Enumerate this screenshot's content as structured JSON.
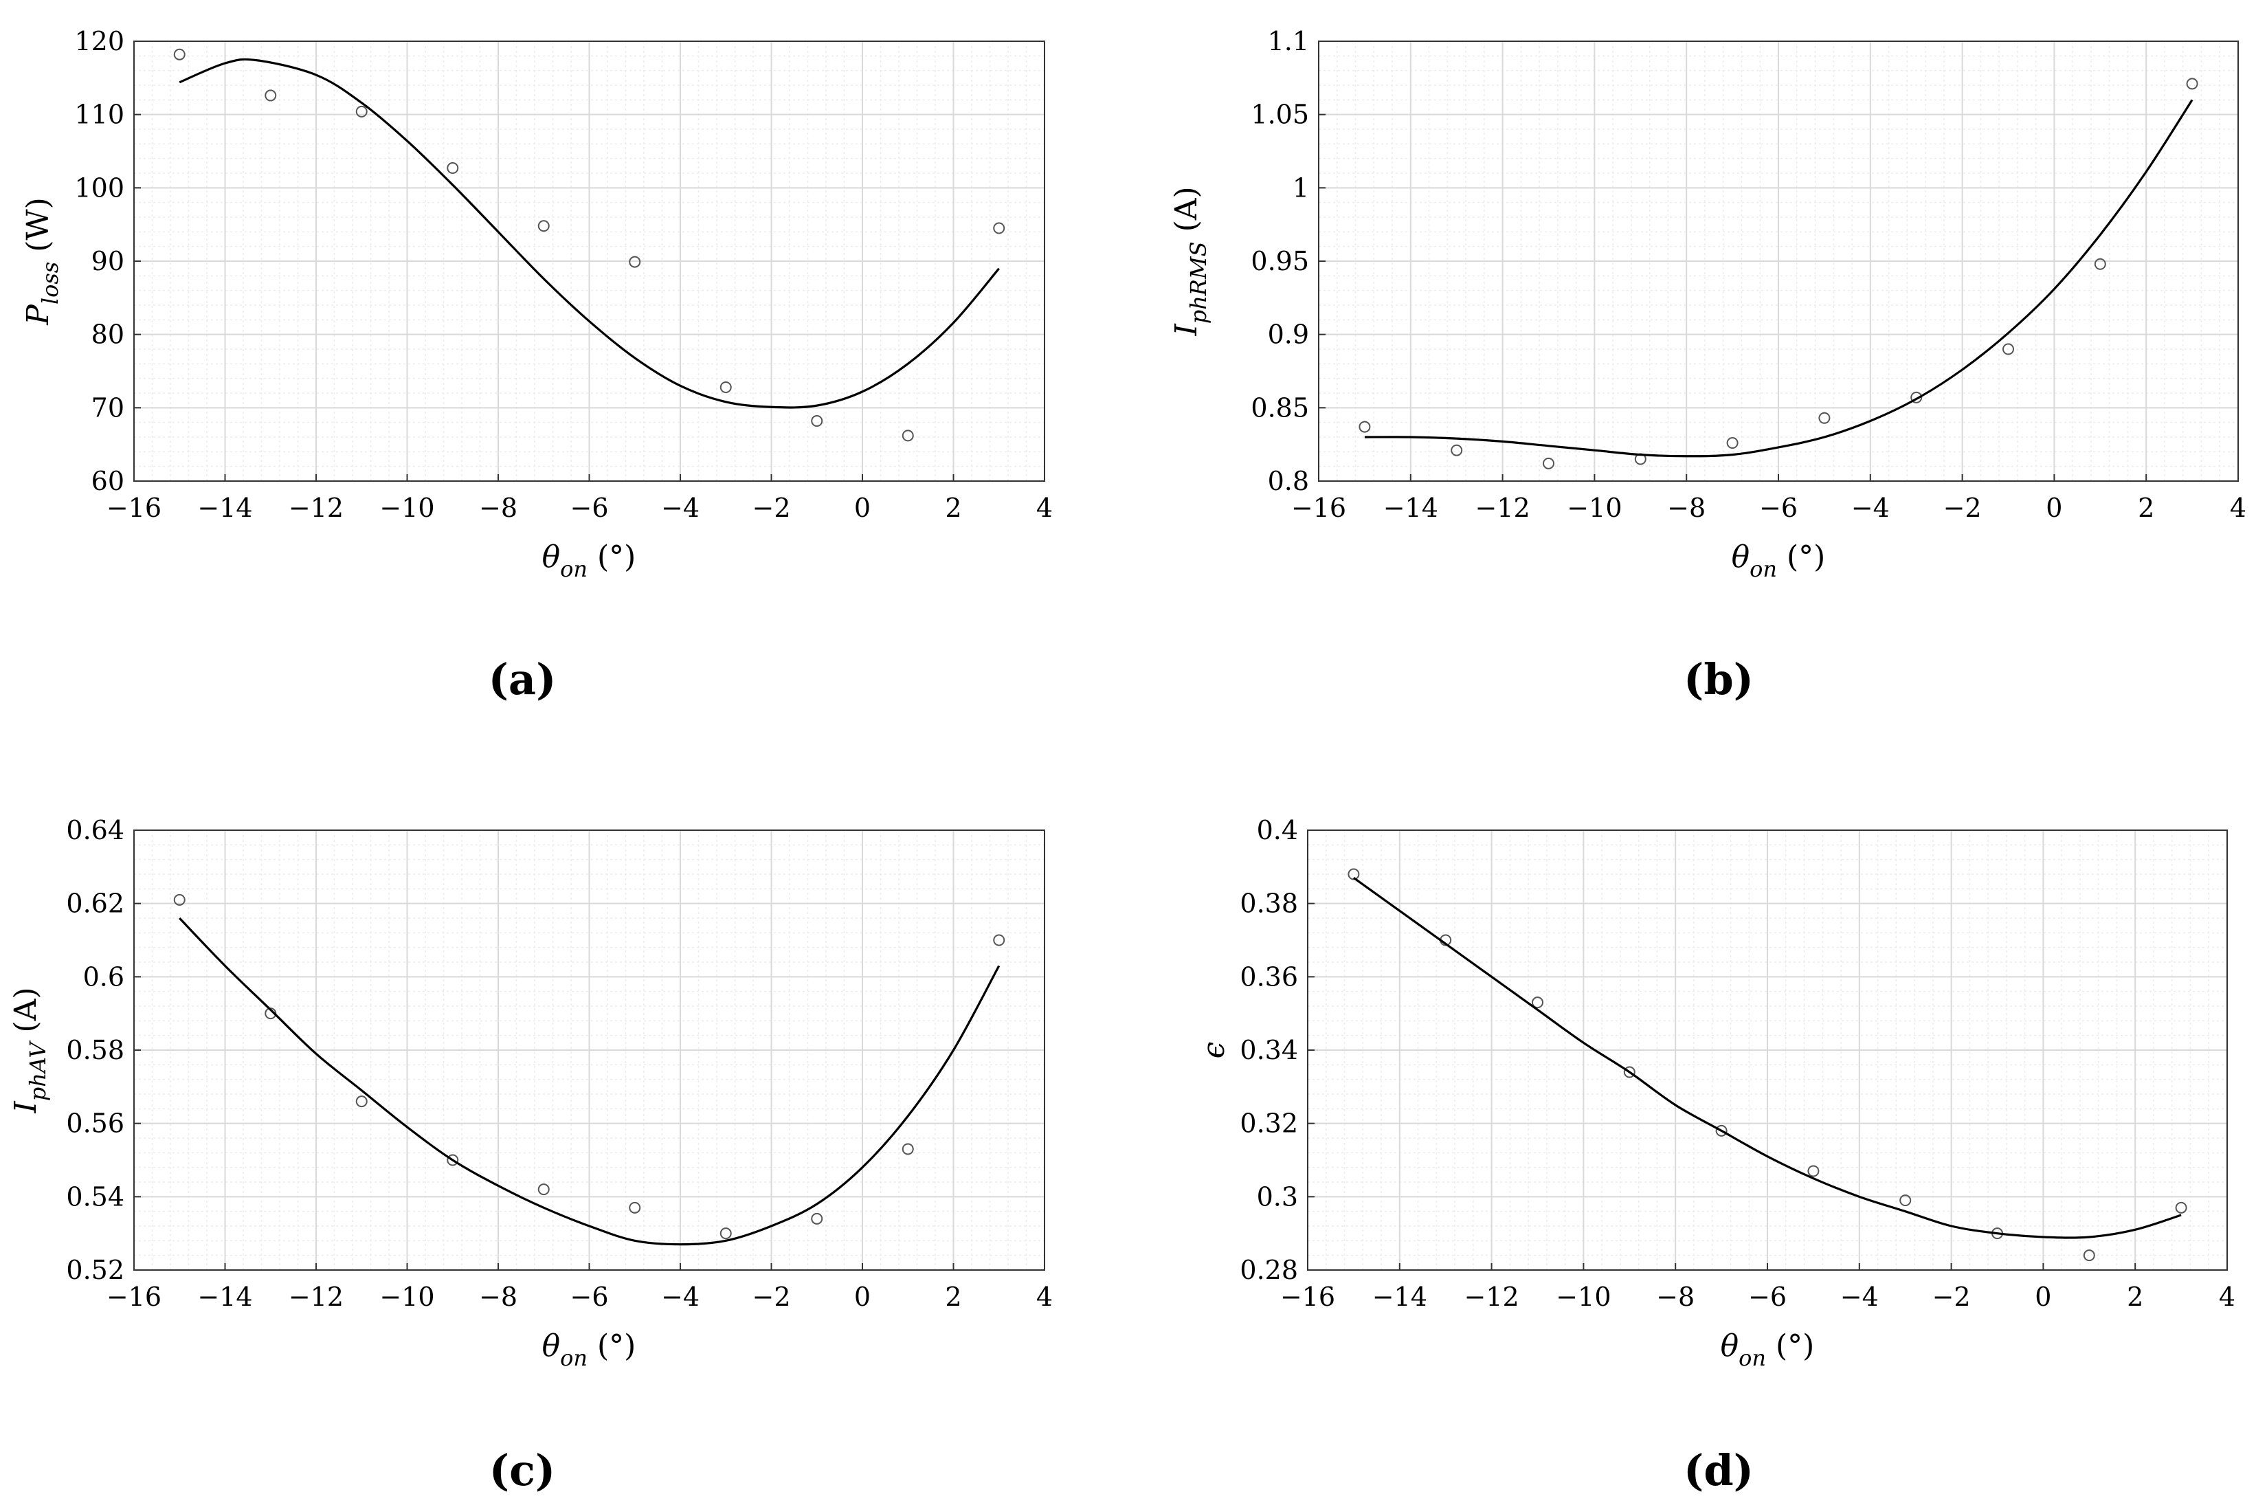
{
  "chart_data": [
    {
      "panel_label": "(a)",
      "type": "scatter",
      "xlabel": "θ on (°)",
      "ylabel": "P loss  (W)",
      "xlabel_main": "θ",
      "xlabel_sub": "on",
      "xlabel_unit": " (°)",
      "ylabel_main": "P",
      "ylabel_sub": "loss",
      "ylabel_unit": "  (W)",
      "xlim": [
        -16,
        4
      ],
      "ylim": [
        60,
        120
      ],
      "xticks": [
        "−16",
        "−14",
        "−12",
        "−10",
        "−8",
        "−6",
        "−4",
        "−2",
        "0",
        "2",
        "4"
      ],
      "yticks": [
        "60",
        "70",
        "80",
        "90",
        "100",
        "110",
        "120"
      ],
      "grid": true,
      "series": [
        {
          "kind": "points",
          "x": [
            -15,
            -13,
            -11,
            -9,
            -7,
            -5,
            -3,
            -1,
            1,
            3
          ],
          "y": [
            118.2,
            112.6,
            110.4,
            102.7,
            94.8,
            89.9,
            72.8,
            68.2,
            66.2,
            94.5
          ]
        },
        {
          "kind": "fit_curve",
          "x": [
            -15,
            -14,
            -13.3,
            -12,
            -11,
            -10,
            -9,
            -8,
            -7,
            -6,
            -5,
            -4,
            -3,
            -2,
            -1,
            0,
            1,
            2,
            3
          ],
          "y": [
            114.4,
            117.0,
            117.4,
            115.4,
            111.6,
            106.4,
            100.4,
            94.0,
            87.6,
            81.8,
            76.8,
            73.0,
            70.8,
            70.1,
            70.3,
            72.2,
            76.0,
            81.6,
            89.0
          ]
        }
      ]
    },
    {
      "panel_label": "(b)",
      "type": "scatter",
      "xlabel": "θ on (°)",
      "ylabel": "I phRMS  (A)",
      "xlabel_main": "θ",
      "xlabel_sub": "on",
      "xlabel_unit": " (°)",
      "ylabel_main": "I",
      "ylabel_sub": "phRMS",
      "ylabel_unit": "  (A)",
      "xlim": [
        -16,
        4
      ],
      "ylim": [
        0.8,
        1.1
      ],
      "xticks": [
        "−16",
        "−14",
        "−12",
        "−10",
        "−8",
        "−6",
        "−4",
        "−2",
        "0",
        "2",
        "4"
      ],
      "yticks": [
        "0.8",
        "0.85",
        "0.9",
        "0.95",
        "1",
        "1.05",
        "1.1"
      ],
      "grid": true,
      "series": [
        {
          "kind": "points",
          "x": [
            -15,
            -13,
            -11,
            -9,
            -7,
            -5,
            -3,
            -1,
            1,
            3
          ],
          "y": [
            0.837,
            0.821,
            0.812,
            0.815,
            0.826,
            0.843,
            0.857,
            0.89,
            0.948,
            1.071
          ]
        },
        {
          "kind": "fit_curve",
          "x": [
            -15,
            -14,
            -13,
            -12,
            -11,
            -10,
            -9,
            -8,
            -7,
            -6,
            -5,
            -4,
            -3,
            -2,
            -1,
            0,
            1,
            2,
            3
          ],
          "y": [
            0.83,
            0.83,
            0.829,
            0.827,
            0.824,
            0.821,
            0.818,
            0.817,
            0.818,
            0.823,
            0.83,
            0.841,
            0.856,
            0.876,
            0.901,
            0.931,
            0.968,
            1.011,
            1.06
          ]
        }
      ]
    },
    {
      "panel_label": "(c)",
      "type": "scatter",
      "xlabel": "θ on (°)",
      "ylabel": "I phAV  (A)",
      "xlabel_main": "θ",
      "xlabel_sub": "on",
      "xlabel_unit": " (°)",
      "ylabel_main": "I",
      "ylabel_sub": "phAV",
      "ylabel_unit": "  (A)",
      "xlim": [
        -16,
        4
      ],
      "ylim": [
        0.52,
        0.64
      ],
      "xticks": [
        "−16",
        "−14",
        "−12",
        "−10",
        "−8",
        "−6",
        "−4",
        "−2",
        "0",
        "2",
        "4"
      ],
      "yticks": [
        "0.52",
        "0.54",
        "0.56",
        "0.58",
        "0.6",
        "0.62",
        "0.64"
      ],
      "grid": true,
      "series": [
        {
          "kind": "points",
          "x": [
            -15,
            -13,
            -11,
            -9,
            -7,
            -5,
            -3,
            -1,
            1,
            3
          ],
          "y": [
            0.621,
            0.59,
            0.566,
            0.55,
            0.542,
            0.537,
            0.53,
            0.534,
            0.553,
            0.61
          ]
        },
        {
          "kind": "fit_curve",
          "x": [
            -15,
            -14,
            -13,
            -12,
            -11,
            -10,
            -9,
            -8,
            -7,
            -6,
            -5,
            -4,
            -3,
            -2,
            -1,
            0,
            1,
            2,
            3
          ],
          "y": [
            0.616,
            0.603,
            0.591,
            0.579,
            0.569,
            0.559,
            0.55,
            0.543,
            0.537,
            0.532,
            0.528,
            0.527,
            0.528,
            0.532,
            0.538,
            0.548,
            0.562,
            0.58,
            0.603
          ]
        }
      ]
    },
    {
      "panel_label": "(d)",
      "type": "scatter",
      "xlabel": "θ on (°)",
      "ylabel": "ϵ",
      "xlabel_main": "θ",
      "xlabel_sub": "on",
      "xlabel_unit": " (°)",
      "ylabel_main": "ϵ",
      "ylabel_sub": "",
      "ylabel_unit": "",
      "xlim": [
        -16,
        4
      ],
      "ylim": [
        0.28,
        0.4
      ],
      "xticks": [
        "−16",
        "−14",
        "−12",
        "−10",
        "−8",
        "−6",
        "−4",
        "−2",
        "0",
        "2",
        "4"
      ],
      "yticks": [
        "0.28",
        "0.3",
        "0.32",
        "0.34",
        "0.36",
        "0.38",
        "0.4"
      ],
      "grid": true,
      "series": [
        {
          "kind": "points",
          "x": [
            -15,
            -13,
            -11,
            -9,
            -7,
            -5,
            -3,
            -1,
            1,
            3
          ],
          "y": [
            0.388,
            0.37,
            0.353,
            0.334,
            0.318,
            0.307,
            0.299,
            0.29,
            0.284,
            0.297
          ]
        },
        {
          "kind": "fit_curve",
          "x": [
            -15,
            -14,
            -13,
            -12,
            -11,
            -10,
            -9,
            -8,
            -7,
            -6,
            -5,
            -4,
            -3,
            -2,
            -1,
            0,
            1,
            2,
            3
          ],
          "y": [
            0.387,
            0.378,
            0.369,
            0.36,
            0.351,
            0.342,
            0.334,
            0.325,
            0.318,
            0.311,
            0.305,
            0.3,
            0.296,
            0.292,
            0.29,
            0.289,
            0.289,
            0.291,
            0.295
          ]
        }
      ]
    }
  ]
}
